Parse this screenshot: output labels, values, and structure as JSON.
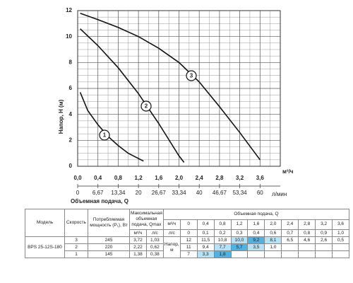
{
  "chart_data": {
    "type": "line",
    "y_label": "Напор, H (м)",
    "x_label": "Объемная подача, Q",
    "x_unit": "м³/ч",
    "x2_unit": "л/мин",
    "xlim": [
      0,
      4
    ],
    "xticks": [
      {
        "value": 0,
        "label": "0,0"
      },
      {
        "value": 0.4,
        "label": "0,4"
      },
      {
        "value": 0.8,
        "label": "0,8"
      },
      {
        "value": 1.2,
        "label": "1,2"
      },
      {
        "value": 1.6,
        "label": "1,6"
      },
      {
        "value": 2.0,
        "label": "2,0"
      },
      {
        "value": 2.4,
        "label": "2,4"
      },
      {
        "value": 2.8,
        "label": "2,8"
      },
      {
        "value": 3.2,
        "label": "3,2"
      },
      {
        "value": 3.6,
        "label": "3,6"
      }
    ],
    "ylim": [
      0,
      12
    ],
    "yticks": [
      0,
      2,
      4,
      6,
      8,
      10,
      12
    ],
    "x2lim": [
      0,
      66.67
    ],
    "x2ticks": [
      0,
      {
        "value": 6.67,
        "label": "6,67"
      },
      {
        "value": 13.34,
        "label": "13,34"
      },
      20,
      {
        "value": 26.67,
        "label": "26,67"
      },
      {
        "value": 33.34,
        "label": "33,34"
      },
      40,
      {
        "value": 46.67,
        "label": "46,67"
      },
      {
        "value": 53.34,
        "label": "53,34"
      },
      60
    ],
    "grid": true,
    "series": [
      {
        "name": "1",
        "color": "#111111",
        "x": [
          0.05,
          0.2,
          0.4,
          0.6,
          0.8,
          1.0,
          1.3
        ],
        "values": [
          5.7,
          4.3,
          3.2,
          2.3,
          1.6,
          1.0,
          0.4
        ]
      },
      {
        "name": "2",
        "color": "#111111",
        "x": [
          0.05,
          0.4,
          0.8,
          1.2,
          1.6,
          2.0,
          2.1
        ],
        "values": [
          10.6,
          9.3,
          7.6,
          5.6,
          3.3,
          0.8,
          0.3
        ]
      },
      {
        "name": "3",
        "color": "#111111",
        "x": [
          0.05,
          0.4,
          0.8,
          1.2,
          1.6,
          2.0,
          2.4,
          2.8,
          3.2,
          3.6
        ],
        "values": [
          11.8,
          11.3,
          10.7,
          10.0,
          9.1,
          8.0,
          6.5,
          4.6,
          2.6,
          0.5
        ]
      }
    ]
  },
  "table": {
    "headers": {
      "model": "Модель",
      "speed": "Скорость",
      "power": "Потребляемая мощность (P₁), Вт",
      "qmax": "Максимальная объемная подача, Qmax",
      "flow": "Объемная подача, Q",
      "head": "Напор, м"
    },
    "qmax_units": [
      "м³/ч",
      "л/с"
    ],
    "flow_rows": [
      {
        "unit": "м³/ч",
        "values": [
          "0",
          "0,4",
          "0,8",
          "1,2",
          "1,6",
          "2,0",
          "2,4",
          "2,8",
          "3,2",
          "3,6"
        ]
      },
      {
        "unit": "л/с",
        "values": [
          "0",
          "0,1",
          "0,2",
          "0,3",
          "0,4",
          "0,6",
          "0,7",
          "0,8",
          "0,9",
          "1,0"
        ]
      }
    ],
    "model": "BPS 25-12S-180",
    "highlight_colors": {
      "light": "#b5e2f6",
      "dark": "#4db3e4"
    },
    "rows": [
      {
        "speed": "3",
        "power": "245",
        "qmax_m3h": "3,72",
        "qmax_ls": "1,03",
        "head": [
          "12",
          "11,5",
          "10,8",
          "10,0",
          "9,2",
          "8,1",
          "6,5",
          "4,6",
          "2,6",
          "0,5"
        ],
        "shade": [
          null,
          null,
          null,
          "light",
          "dark",
          "light",
          null,
          null,
          null,
          null
        ]
      },
      {
        "speed": "2",
        "power": "220",
        "qmax_m3h": "2,22",
        "qmax_ls": "0,62",
        "head": [
          "11",
          "9,4",
          "7,7",
          "5,7",
          "3,5",
          "1,0"
        ],
        "shade": [
          null,
          null,
          "light",
          "dark",
          "light",
          null
        ]
      },
      {
        "speed": "1",
        "power": "145",
        "qmax_m3h": "1,38",
        "qmax_ls": "0,38",
        "head": [
          "7",
          "3,3",
          "1,8"
        ],
        "shade": [
          null,
          "light",
          "dark"
        ]
      }
    ]
  }
}
